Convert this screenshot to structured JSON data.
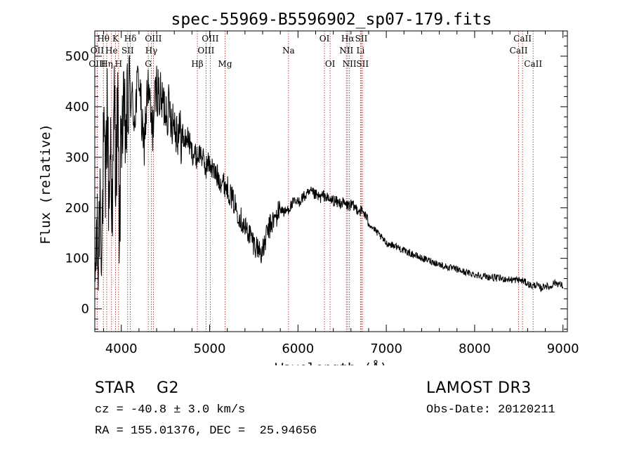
{
  "chart_data": {
    "type": "line",
    "title": "spec-55969-B5596902_sp07-179.fits",
    "xlabel": "Wavelength (Å)",
    "ylabel": "Flux (relative)",
    "xlim": [
      3700,
      9050
    ],
    "ylim": [
      -45,
      550
    ],
    "xticks": [
      4000,
      5000,
      6000,
      7000,
      8000,
      9000
    ],
    "yticks": [
      0,
      100,
      200,
      300,
      400,
      500
    ],
    "xminor_step": 200,
    "yminor_step": 20,
    "series": [
      {
        "name": "flux",
        "color": "#000000",
        "x": [
          3700,
          3720,
          3740,
          3760,
          3780,
          3800,
          3820,
          3840,
          3860,
          3880,
          3900,
          3920,
          3940,
          3960,
          3980,
          4000,
          4050,
          4100,
          4150,
          4200,
          4250,
          4300,
          4350,
          4400,
          4450,
          4500,
          4550,
          4600,
          4650,
          4700,
          4750,
          4800,
          4850,
          4900,
          4950,
          5000,
          5050,
          5100,
          5150,
          5200,
          5250,
          5300,
          5350,
          5400,
          5450,
          5500,
          5550,
          5600,
          5650,
          5700,
          5750,
          5800,
          5850,
          5900,
          5950,
          6000,
          6050,
          6100,
          6150,
          6200,
          6250,
          6300,
          6350,
          6400,
          6450,
          6500,
          6550,
          6600,
          6650,
          6700,
          6750,
          6800,
          6850,
          6900,
          6950,
          7000,
          7100,
          7200,
          7300,
          7400,
          7500,
          7600,
          7700,
          7800,
          7900,
          8000,
          8100,
          8200,
          8300,
          8400,
          8500,
          8550,
          8600,
          8650,
          8700,
          8750,
          8800,
          8850,
          8900,
          8950,
          9000
        ],
        "y": [
          30,
          150,
          80,
          250,
          120,
          330,
          220,
          420,
          200,
          350,
          160,
          430,
          260,
          400,
          120,
          380,
          350,
          430,
          380,
          470,
          310,
          440,
          350,
          440,
          410,
          400,
          390,
          370,
          350,
          330,
          340,
          310,
          300,
          310,
          280,
          290,
          270,
          260,
          250,
          240,
          220,
          200,
          180,
          160,
          150,
          130,
          120,
          110,
          150,
          170,
          180,
          200,
          190,
          200,
          210,
          210,
          220,
          225,
          230,
          225,
          220,
          225,
          215,
          215,
          210,
          210,
          205,
          205,
          200,
          195,
          190,
          170,
          160,
          150,
          140,
          130,
          125,
          115,
          108,
          100,
          95,
          88,
          82,
          78,
          72,
          68,
          65,
          62,
          60,
          58,
          57,
          55,
          50,
          45,
          48,
          40,
          47,
          42,
          52,
          50,
          45
        ]
      }
    ],
    "lines": [
      {
        "label": "Hθ",
        "wl": 3797,
        "row": 0
      },
      {
        "label": "OII",
        "wl": 3727,
        "row": 1
      },
      {
        "label": "OIII",
        "wl": 3727,
        "row": 2
      },
      {
        "label": "He",
        "wl": 3889,
        "row": 1
      },
      {
        "label": "Hη",
        "wl": 3835,
        "row": 2
      },
      {
        "label": "K",
        "wl": 3934,
        "row": 0
      },
      {
        "label": "SII",
        "wl": 4072,
        "row": 1
      },
      {
        "label": "H",
        "wl": 3969,
        "row": 2
      },
      {
        "label": "Hδ",
        "wl": 4102,
        "row": 0
      },
      {
        "label": "OIII",
        "wl": 4363,
        "row": 0
      },
      {
        "label": "Hγ",
        "wl": 4340,
        "row": 1
      },
      {
        "label": "G",
        "wl": 4305,
        "row": 2
      },
      {
        "label": "Hβ",
        "wl": 4861,
        "row": 2
      },
      {
        "label": "OIII",
        "wl": 5007,
        "row": 0
      },
      {
        "label": "OIII",
        "wl": 4959,
        "row": 1
      },
      {
        "label": "Mg",
        "wl": 5175,
        "row": 2
      },
      {
        "label": "Na",
        "wl": 5893,
        "row": 1
      },
      {
        "label": "OI",
        "wl": 6300,
        "row": 0
      },
      {
        "label": "OI",
        "wl": 6364,
        "row": 2
      },
      {
        "label": "Hα",
        "wl": 6563,
        "row": 0
      },
      {
        "label": "SII",
        "wl": 6717,
        "row": 0
      },
      {
        "label": "NII",
        "wl": 6548,
        "row": 1
      },
      {
        "label": "Li",
        "wl": 6708,
        "row": 1
      },
      {
        "label": "NII",
        "wl": 6583,
        "row": 2
      },
      {
        "label": "SII",
        "wl": 6731,
        "row": 2
      },
      {
        "label": "CaII",
        "wl": 8542,
        "row": 0
      },
      {
        "label": "CaII",
        "wl": 8498,
        "row": 1
      },
      {
        "label": "CaII",
        "wl": 8662,
        "row": 2
      }
    ]
  },
  "info": {
    "class_line": "STAR    G2",
    "survey": "LAMOST DR3",
    "cz_line": "cz = -40.8 ± 3.0 km/s",
    "obs_date": "Obs-Date: 20120211",
    "radec_line": "RA = 155.01376, DEC =  25.94656"
  },
  "colors": {
    "line_marker": "#b03030",
    "axis": "#000000",
    "background": "#ffffff"
  }
}
